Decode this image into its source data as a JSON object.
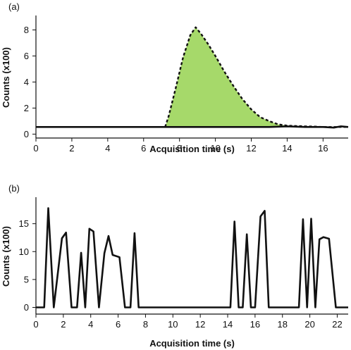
{
  "chart_data": [
    {
      "type": "area",
      "panel_label": "(a)",
      "xlabel": "Acquisition time (s)",
      "ylabel": "Counts (x100)",
      "xlim": [
        0,
        17.4
      ],
      "ylim": [
        -0.3,
        9.0
      ],
      "xticks": [
        0,
        2,
        4,
        6,
        8,
        10,
        12,
        14,
        16
      ],
      "yticks": [
        0,
        2,
        4,
        6,
        8
      ],
      "fill_color": "#a6d96a",
      "series": [
        {
          "style": "solid",
          "x": [
            0,
            7.2,
            8,
            10,
            12,
            13,
            14,
            15,
            16,
            16.6,
            17.0,
            17.4
          ],
          "y": [
            0.55,
            0.55,
            0.55,
            0.55,
            0.55,
            0.55,
            0.6,
            0.55,
            0.55,
            0.5,
            0.6,
            0.55
          ]
        },
        {
          "style": "dashed",
          "x": [
            7.2,
            7.4,
            7.8,
            8.2,
            8.6,
            8.9,
            9.2,
            9.6,
            10.0,
            10.5,
            11.0,
            11.5,
            12.0,
            12.5,
            13.0,
            13.5,
            14.0,
            14.5,
            15.0,
            15.5,
            16.0,
            16.6,
            17.0,
            17.4
          ],
          "y": [
            0.55,
            1.4,
            3.6,
            5.9,
            7.6,
            8.2,
            7.7,
            6.9,
            6.0,
            4.8,
            3.7,
            2.7,
            1.9,
            1.3,
            1.0,
            0.75,
            0.65,
            0.62,
            0.6,
            0.58,
            0.55,
            0.55,
            0.55,
            0.55
          ]
        }
      ]
    },
    {
      "type": "line",
      "panel_label": "(b)",
      "xlabel": "Acquisition time (s)",
      "ylabel": "Counts (x100)",
      "xlim": [
        0,
        22.8
      ],
      "ylim": [
        -1.2,
        19.5
      ],
      "xticks": [
        0,
        2,
        4,
        6,
        8,
        10,
        12,
        14,
        16,
        18,
        20,
        22
      ],
      "yticks": [
        0,
        5,
        10,
        15
      ],
      "series": [
        {
          "x": [
            0,
            0.6,
            0.9,
            1.3,
            1.9,
            2.2,
            2.6,
            3.0,
            3.3,
            3.6,
            3.9,
            4.2,
            4.6,
            5.0,
            5.3,
            5.6,
            6.1,
            6.5,
            6.9,
            7.2,
            7.5,
            14.2,
            14.5,
            14.8,
            15.1,
            15.4,
            15.7,
            16.0,
            16.4,
            16.7,
            17.0,
            17.3,
            19.2,
            19.5,
            19.8,
            20.1,
            20.4,
            20.7,
            21.0,
            21.4,
            21.9,
            22.3,
            22.8
          ],
          "y": [
            0,
            0,
            17.8,
            0,
            12.4,
            13.4,
            0,
            0,
            9.8,
            0,
            14.1,
            13.6,
            0,
            9.7,
            12.8,
            9.4,
            9.0,
            0,
            0,
            13.3,
            0,
            0,
            15.4,
            0,
            0,
            13.1,
            0,
            0,
            16.3,
            17.3,
            0,
            0,
            0,
            15.8,
            0,
            15.9,
            0,
            12.2,
            12.6,
            12.3,
            0,
            0,
            0
          ]
        }
      ]
    }
  ]
}
